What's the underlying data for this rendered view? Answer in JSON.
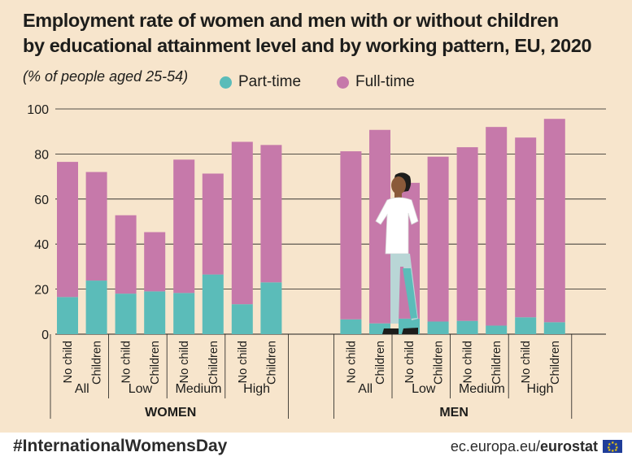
{
  "title_line1": "Employment rate of women and men with or without children",
  "title_line2": "by educational attainment level and by working pattern, EU, 2020",
  "subtitle": "(% of people aged 25-54)",
  "legend": {
    "part_time": "Part-time",
    "full_time": "Full-time"
  },
  "colors": {
    "part_time": "#5bbcb9",
    "full_time": "#c679aa",
    "background": "#f7e5cc",
    "grid": "#1d1d1b"
  },
  "footer": {
    "hashtag": "#InternationalWomensDay",
    "site_prefix": "ec.europa.eu/",
    "site_brand": "eurostat",
    "flag_icon": "eu-flag-icon"
  },
  "illustration_icon": "standing-person-illustration",
  "chart_data": {
    "type": "bar",
    "stacked": true,
    "ylim": [
      0,
      100
    ],
    "yticks": [
      0,
      20,
      40,
      60,
      80,
      100
    ],
    "grid": true,
    "legend_position": "top",
    "series_names": [
      "Part-time",
      "Full-time"
    ],
    "groups": [
      {
        "name": "WOMEN",
        "subgroups": [
          {
            "name": "All",
            "bars": [
              {
                "label": "No child",
                "part_time": 16.5,
                "full_time": 60.0
              },
              {
                "label": "Children",
                "part_time": 23.8,
                "full_time": 48.2
              }
            ]
          },
          {
            "name": "Low",
            "bars": [
              {
                "label": "No child",
                "part_time": 18.0,
                "full_time": 34.8
              },
              {
                "label": "Children",
                "part_time": 19.0,
                "full_time": 26.3
              }
            ]
          },
          {
            "name": "Medium",
            "bars": [
              {
                "label": "No child",
                "part_time": 18.3,
                "full_time": 59.2
              },
              {
                "label": "Children",
                "part_time": 26.5,
                "full_time": 44.8
              }
            ]
          },
          {
            "name": "High",
            "bars": [
              {
                "label": "No child",
                "part_time": 13.3,
                "full_time": 72.1
              },
              {
                "label": "Children",
                "part_time": 23.0,
                "full_time": 61.0
              }
            ]
          }
        ]
      },
      {
        "name": "MEN",
        "subgroups": [
          {
            "name": "All",
            "bars": [
              {
                "label": "No child",
                "part_time": 6.6,
                "full_time": 74.6
              },
              {
                "label": "Children",
                "part_time": 4.8,
                "full_time": 85.9
              }
            ]
          },
          {
            "name": "Low",
            "bars": [
              {
                "label": "No child",
                "part_time": 6.9,
                "full_time": 60.3
              },
              {
                "label": "Children",
                "part_time": 5.6,
                "full_time": 73.2
              }
            ]
          },
          {
            "name": "Medium",
            "bars": [
              {
                "label": "No child",
                "part_time": 5.9,
                "full_time": 77.1
              },
              {
                "label": "Children",
                "part_time": 3.8,
                "full_time": 88.2
              }
            ]
          },
          {
            "name": "High",
            "bars": [
              {
                "label": "No child",
                "part_time": 7.5,
                "full_time": 79.8
              },
              {
                "label": "Children",
                "part_time": 5.3,
                "full_time": 90.3
              }
            ]
          }
        ]
      }
    ]
  }
}
